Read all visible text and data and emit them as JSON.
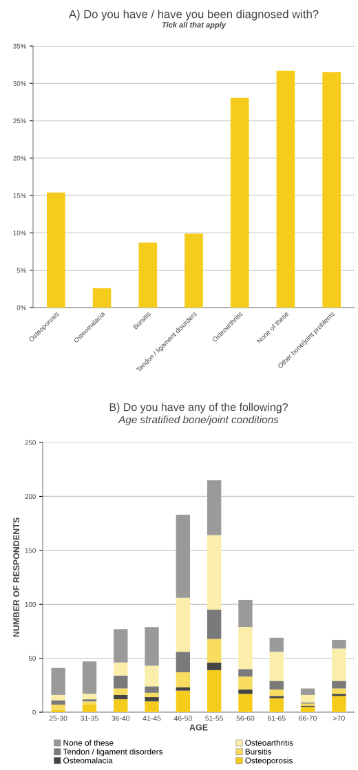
{
  "chart_data": [
    {
      "type": "bar",
      "title": "A) Do you have / have you been diagnosed with?",
      "subtitle": "Tick all that apply",
      "categories": [
        "Osteoporosis",
        "Osteomalacia",
        "Bursitis",
        "Tendon / ligament disorders",
        "Osteoarthritis",
        "None of these",
        "Other bone/joint problems"
      ],
      "values": [
        15.4,
        2.6,
        8.7,
        9.9,
        28.1,
        31.7,
        31.5
      ],
      "color": "#f5cc1c",
      "ylim": [
        0,
        35
      ],
      "yticks": [
        {
          "value": 0,
          "label": "0%"
        },
        {
          "value": 5,
          "label": "5%"
        },
        {
          "value": 10,
          "label": "10%"
        },
        {
          "value": 15,
          "label": "15%"
        },
        {
          "value": 20,
          "label": "20%"
        },
        {
          "value": 25,
          "label": "25%"
        },
        {
          "value": 30,
          "label": "30%"
        },
        {
          "value": 35,
          "label": "35%"
        }
      ],
      "grid": "y"
    },
    {
      "type": "bar",
      "title": "B) Do you have any of the following?",
      "subtitle": "Age stratified bone/joint conditions",
      "xlabel": "AGE",
      "ylabel": "NUMBER OF RESPONDENTS",
      "stacked": true,
      "categories": [
        "25-30",
        "31-35",
        "36-40",
        "41-45",
        "46-50",
        "51-55",
        "56-60",
        "61-65",
        "66-70",
        ">70"
      ],
      "ylim": [
        0,
        250
      ],
      "yticks": [
        0,
        50,
        100,
        150,
        200,
        250
      ],
      "grid": "y",
      "legend": "bottom",
      "series": [
        {
          "name": "Osteoporosis",
          "color": "#f5cc1c",
          "values": [
            2,
            7,
            12,
            10,
            20,
            39,
            17,
            13,
            5,
            15
          ]
        },
        {
          "name": "Osteomalacia",
          "color": "#444444",
          "values": [
            0,
            0,
            4,
            4,
            3,
            7,
            4,
            2,
            1,
            2
          ]
        },
        {
          "name": "Bursitis",
          "color": "#f8dc60",
          "values": [
            5,
            3,
            6,
            4,
            14,
            22,
            12,
            6,
            2,
            5
          ]
        },
        {
          "name": "Tendon / ligament disorders",
          "color": "#7a7a7a",
          "values": [
            4,
            2,
            12,
            6,
            19,
            27,
            7,
            8,
            1,
            7
          ]
        },
        {
          "name": "Osteoarthritis",
          "color": "#fbeeaa",
          "values": [
            5,
            5,
            12,
            19,
            50,
            69,
            39,
            27,
            7,
            30
          ]
        },
        {
          "name": "None of these",
          "color": "#9a9a9a",
          "values": [
            25,
            30,
            31,
            36,
            77,
            51,
            25,
            13,
            6,
            8
          ]
        }
      ]
    }
  ]
}
